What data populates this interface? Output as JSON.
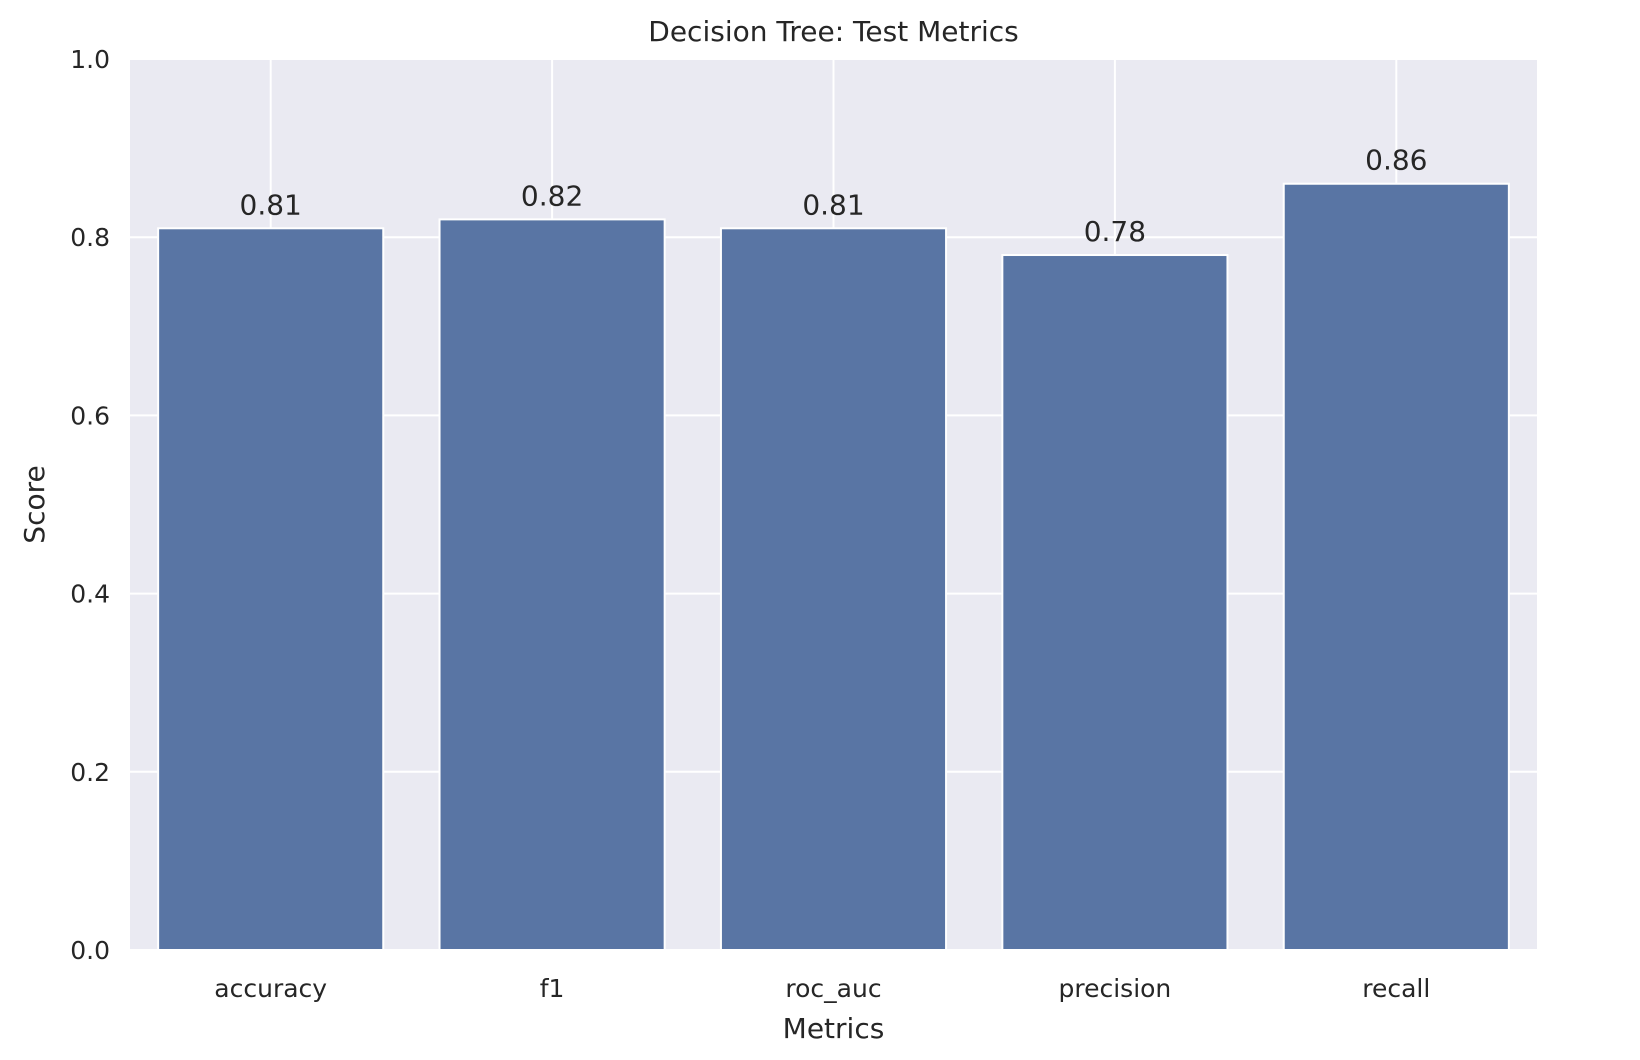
{
  "chart_data": {
    "type": "bar",
    "title": "Decision Tree: Test Metrics",
    "xlabel": "Metrics",
    "ylabel": "Score",
    "categories": [
      "accuracy",
      "f1",
      "roc_auc",
      "precision",
      "recall"
    ],
    "values": [
      0.81,
      0.82,
      0.81,
      0.78,
      0.86
    ],
    "value_labels": [
      "0.81",
      "0.82",
      "0.81",
      "0.78",
      "0.86"
    ],
    "ylim": [
      0,
      1.0
    ],
    "yticks": [
      0.0,
      0.2,
      0.4,
      0.6,
      0.8,
      1.0
    ],
    "ytick_labels": [
      "0.0",
      "0.2",
      "0.4",
      "0.6",
      "0.8",
      "1.0"
    ],
    "grid": true,
    "colors": {
      "bar": "#5975a4",
      "plot_background": "#eaeaf2",
      "grid": "#ffffff",
      "text": "#262626"
    }
  }
}
